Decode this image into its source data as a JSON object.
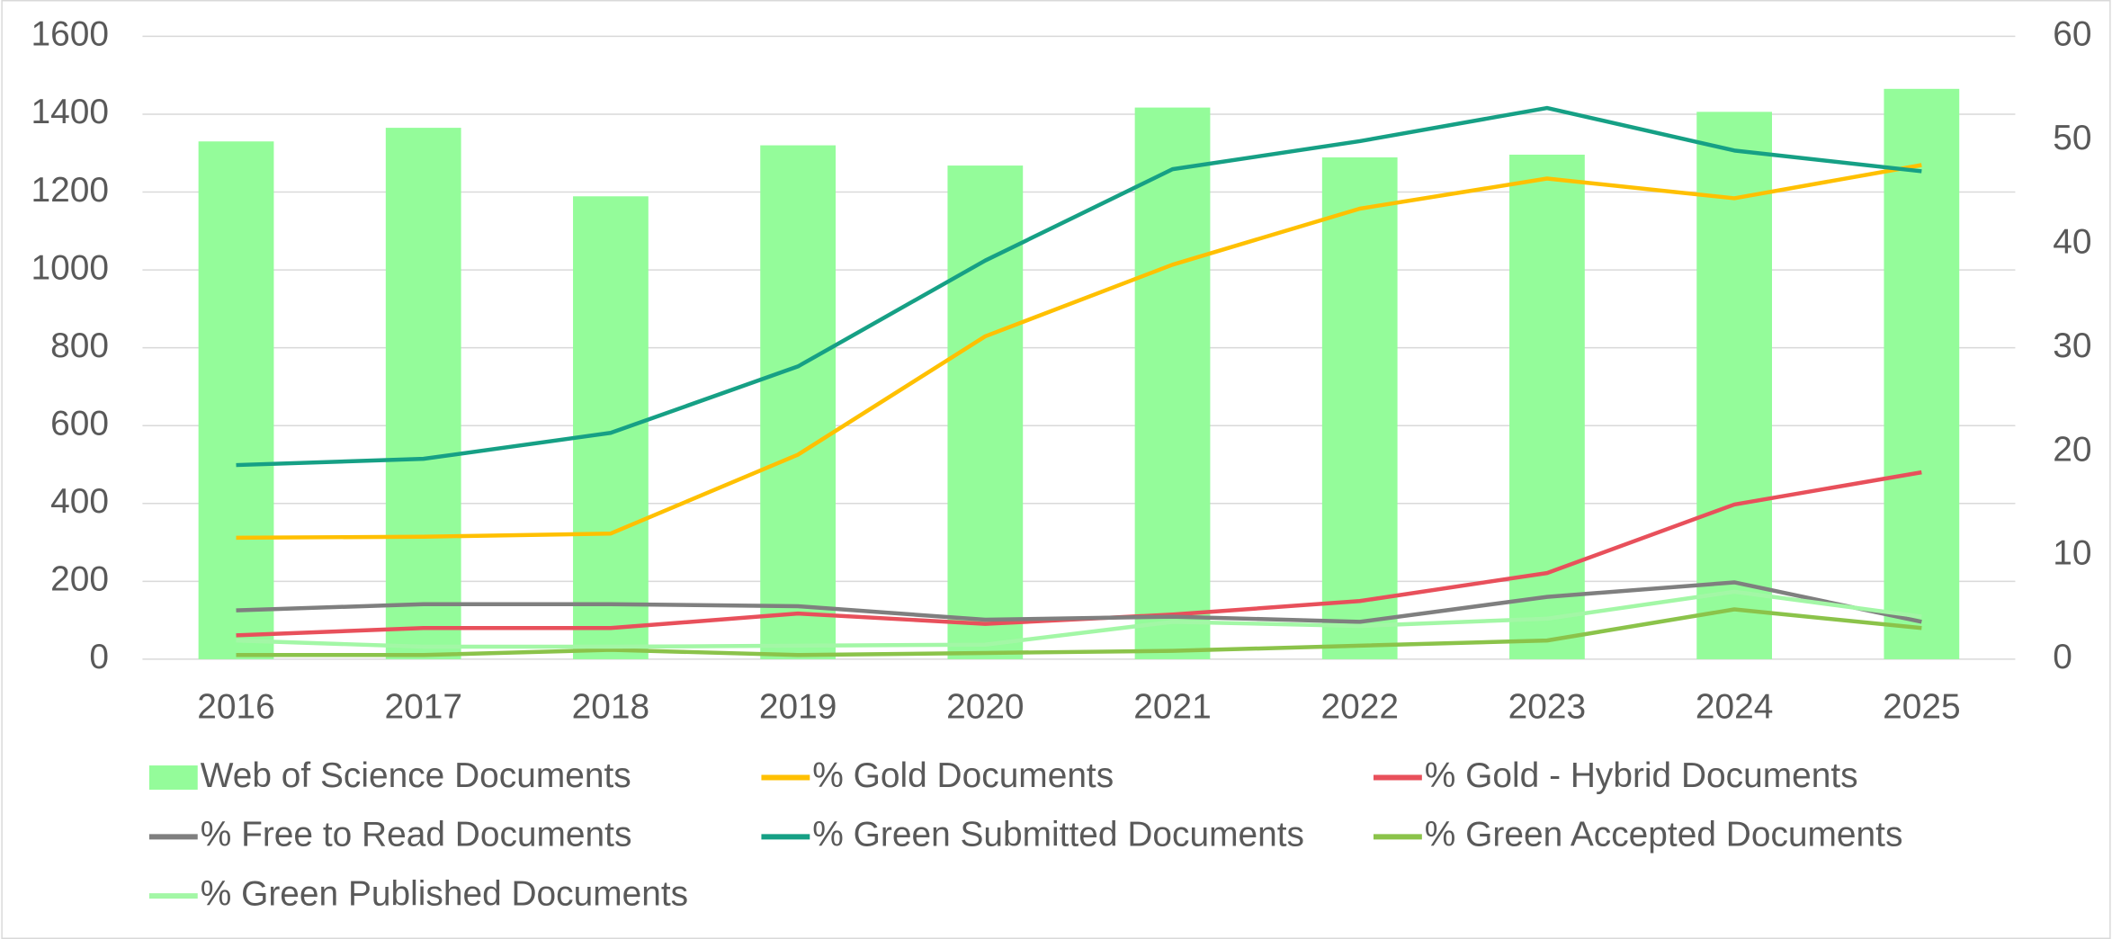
{
  "chart_data": {
    "type": "bar",
    "categories": [
      "2016",
      "2017",
      "2018",
      "2019",
      "2020",
      "2021",
      "2022",
      "2023",
      "2024",
      "2025"
    ],
    "ylim": [
      0,
      1600
    ],
    "yticks": [
      0,
      200,
      400,
      600,
      800,
      1000,
      1200,
      1400,
      1600
    ],
    "y2lim": [
      0,
      60
    ],
    "y2ticks": [
      0,
      10,
      20,
      30,
      40,
      50,
      60
    ],
    "grid": true,
    "legend": "bottom",
    "series": [
      {
        "name": "Web of Science Documents",
        "type": "bar",
        "color": "#94fc9a",
        "values": [
          1330,
          1365,
          1189,
          1320,
          1268,
          1417,
          1289,
          1296,
          1406,
          1465
        ]
      },
      {
        "name": "% Gold Documents",
        "type": "line",
        "axis": "y2",
        "color": "#ffc000",
        "values": [
          11.7,
          11.8,
          12.1,
          19.7,
          31.1,
          38.0,
          43.4,
          46.3,
          44.4,
          47.6
        ]
      },
      {
        "name": "% Gold - Hybrid Documents",
        "type": "line",
        "axis": "y2",
        "color": "#e8505b",
        "values": [
          2.3,
          3.0,
          3.0,
          4.4,
          3.4,
          4.3,
          5.6,
          8.3,
          14.9,
          18.0
        ]
      },
      {
        "name": "% Free to Read Documents",
        "type": "line",
        "axis": "y2",
        "color": "#7f7f7f",
        "values": [
          4.7,
          5.3,
          5.3,
          5.1,
          3.8,
          4.1,
          3.6,
          6.0,
          7.4,
          3.6
        ]
      },
      {
        "name": "% Green Submitted Documents",
        "type": "line",
        "axis": "y2",
        "color": "#16a085",
        "values": [
          18.7,
          19.3,
          21.8,
          28.2,
          38.4,
          47.2,
          49.9,
          53.1,
          49.0,
          47.0
        ]
      },
      {
        "name": "% Green Accepted Documents",
        "type": "line",
        "axis": "y2",
        "color": "#8bc34a",
        "values": [
          0.4,
          0.4,
          0.9,
          0.4,
          0.6,
          0.8,
          1.3,
          1.8,
          4.8,
          3.0
        ]
      },
      {
        "name": "% Green Published Documents",
        "type": "line",
        "axis": "y2",
        "color": "#a3f7a6",
        "values": [
          1.8,
          1.2,
          1.2,
          1.3,
          1.4,
          3.6,
          3.2,
          3.9,
          6.5,
          4.1
        ]
      }
    ]
  }
}
